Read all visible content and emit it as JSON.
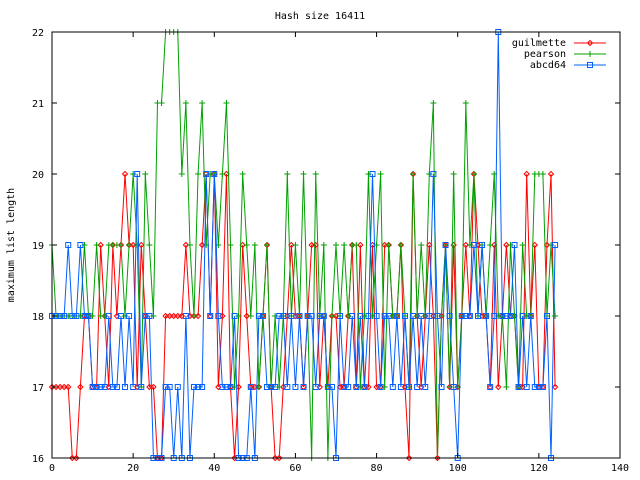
{
  "chart_data": {
    "type": "line",
    "title": "Hash size 16411",
    "xlabel": "",
    "ylabel": "maximum list length",
    "xlim": [
      0,
      140
    ],
    "ylim": [
      16,
      22
    ],
    "x_ticks": [
      0,
      20,
      40,
      60,
      80,
      100,
      120,
      140
    ],
    "y_ticks": [
      16,
      17,
      18,
      19,
      20,
      21,
      22
    ],
    "grid": false,
    "legend_position": "top-right",
    "series": [
      {
        "name": "guilmette",
        "color": "#ff0000",
        "marker": "diamond",
        "values": [
          17,
          17,
          17,
          17,
          17,
          16,
          16,
          17,
          18,
          18,
          17,
          17,
          19,
          18,
          17,
          19,
          18,
          19,
          20,
          19,
          19,
          17,
          19,
          18,
          17,
          17,
          16,
          16,
          18,
          18,
          18,
          18,
          18,
          19,
          18,
          18,
          18,
          19,
          20,
          18,
          20,
          17,
          18,
          20,
          17,
          16,
          17,
          19,
          18,
          17,
          17,
          17,
          18,
          19,
          17,
          16,
          16,
          17,
          18,
          19,
          18,
          18,
          17,
          18,
          19,
          19,
          17,
          18,
          17,
          18,
          18,
          17,
          17,
          18,
          19,
          17,
          19,
          17,
          17,
          19,
          17,
          17,
          19,
          19,
          18,
          18,
          19,
          17,
          16,
          20,
          18,
          17,
          18,
          19,
          18,
          16,
          18,
          19,
          17,
          19,
          17,
          18,
          19,
          18,
          20,
          19,
          18,
          18,
          17,
          19,
          17,
          18,
          19,
          18,
          18,
          17,
          17,
          20,
          18,
          19,
          17,
          17,
          19,
          20,
          17
        ]
      },
      {
        "name": "pearson",
        "color": "#00a000",
        "marker": "plus",
        "values": [
          19,
          18,
          18,
          18,
          18,
          18,
          18,
          18,
          19,
          18,
          18,
          19,
          18,
          18,
          19,
          19,
          19,
          19,
          18,
          19,
          20,
          19,
          17,
          20,
          19,
          18,
          21,
          21,
          22,
          22,
          22,
          22,
          20,
          21,
          19,
          18,
          20,
          21,
          19,
          20,
          20,
          19,
          20,
          21,
          19,
          17,
          18,
          20,
          19,
          18,
          19,
          17,
          18,
          19,
          17,
          18,
          17,
          18,
          20,
          18,
          19,
          18,
          20,
          18,
          16,
          20,
          18,
          19,
          16,
          18,
          19,
          18,
          19,
          18,
          19,
          19,
          17,
          18,
          20,
          18,
          19,
          20,
          17,
          19,
          18,
          18,
          19,
          18,
          17,
          20,
          18,
          19,
          18,
          20,
          21,
          16,
          18,
          19,
          17,
          20,
          17,
          18,
          21,
          19,
          20,
          18,
          19,
          18,
          19,
          20,
          18,
          18,
          17,
          19,
          18,
          17,
          19,
          18,
          18,
          20,
          20,
          20,
          18,
          19,
          18
        ]
      },
      {
        "name": "abcd64",
        "color": "#0060ff",
        "marker": "square",
        "values": [
          18,
          18,
          18,
          18,
          19,
          18,
          18,
          19,
          18,
          18,
          17,
          17,
          17,
          17,
          18,
          17,
          17,
          18,
          17,
          18,
          17,
          20,
          17,
          18,
          18,
          16,
          16,
          16,
          17,
          17,
          16,
          17,
          16,
          18,
          16,
          17,
          17,
          17,
          20,
          18,
          20,
          18,
          17,
          17,
          17,
          18,
          16,
          16,
          16,
          17,
          16,
          18,
          18,
          17,
          17,
          17,
          18,
          18,
          17,
          18,
          17,
          18,
          17,
          18,
          18,
          17,
          18,
          18,
          17,
          17,
          16,
          18,
          17,
          17,
          18,
          17,
          18,
          17,
          18,
          20,
          18,
          17,
          18,
          18,
          17,
          18,
          17,
          18,
          17,
          18,
          17,
          18,
          17,
          18,
          20,
          18,
          17,
          19,
          18,
          17,
          16,
          18,
          18,
          18,
          19,
          18,
          19,
          18,
          17,
          18,
          22,
          18,
          18,
          18,
          19,
          17,
          18,
          17,
          18,
          17,
          17,
          17,
          18,
          16,
          19
        ]
      }
    ]
  }
}
